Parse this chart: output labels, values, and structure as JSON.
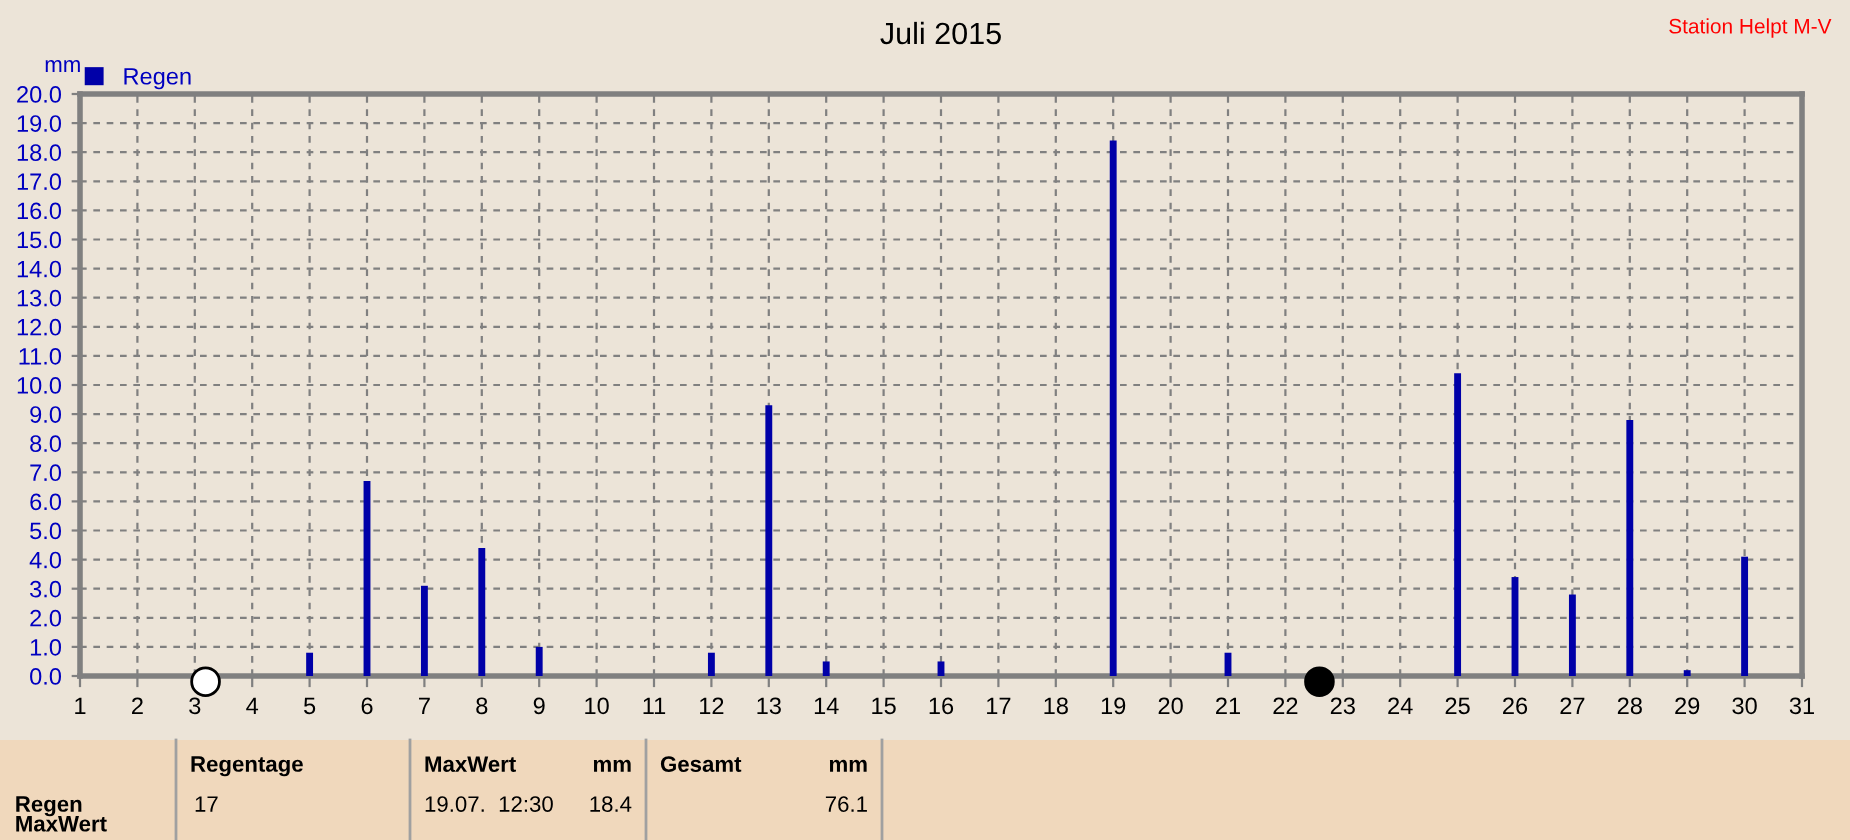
{
  "chart_data": {
    "type": "bar",
    "title": "Juli 2015",
    "ylabel": "mm",
    "x": [
      5,
      6,
      7,
      8,
      9,
      12,
      13,
      14,
      16,
      19,
      21,
      25,
      26,
      27,
      28,
      29,
      30
    ],
    "series": [
      {
        "name": "Regen",
        "color": "#0000a8",
        "values": [
          0.8,
          6.7,
          3.1,
          4.4,
          1.0,
          0.8,
          9.3,
          0.5,
          0.5,
          18.4,
          0.8,
          10.4,
          3.4,
          2.8,
          8.8,
          0.2,
          4.1
        ]
      }
    ],
    "xlim": [
      1,
      31
    ],
    "xticks": [
      1,
      2,
      3,
      4,
      5,
      6,
      7,
      8,
      9,
      10,
      11,
      12,
      13,
      14,
      15,
      16,
      17,
      18,
      19,
      20,
      21,
      22,
      23,
      24,
      25,
      26,
      27,
      28,
      29,
      30,
      31
    ],
    "ylim": [
      0,
      20
    ],
    "yticks": [
      {
        "value": 0,
        "label": "0.0"
      },
      {
        "value": 1,
        "label": "1.0"
      },
      {
        "value": 2,
        "label": "2.0"
      },
      {
        "value": 3,
        "label": "3.0"
      },
      {
        "value": 4,
        "label": "4.0"
      },
      {
        "value": 5,
        "label": "5.0"
      },
      {
        "value": 6,
        "label": "6.0"
      },
      {
        "value": 7,
        "label": "7.0"
      },
      {
        "value": 8,
        "label": "8.0"
      },
      {
        "value": 9,
        "label": "9.0"
      },
      {
        "value": 10,
        "label": "10.0"
      },
      {
        "value": 11,
        "label": "11.0"
      },
      {
        "value": 12,
        "label": "12.0"
      },
      {
        "value": 13,
        "label": "13.0"
      },
      {
        "value": 14,
        "label": "14.0"
      },
      {
        "value": 15,
        "label": "15.0"
      },
      {
        "value": 16,
        "label": "16.0"
      },
      {
        "value": 17,
        "label": "17.0"
      },
      {
        "value": 18,
        "label": "18.0"
      },
      {
        "value": 19,
        "label": "19.0"
      },
      {
        "value": 20,
        "label": "20.0"
      }
    ],
    "grid": true,
    "legend": "top left",
    "annotations": [
      "Station Helpt M-V",
      "Regen",
      "MaxWert",
      "Regentage",
      "17",
      "MaxWert",
      "mm",
      "19.07.  12:30",
      "18.4",
      "Gesamt",
      "mm",
      "76.1"
    ]
  }
}
